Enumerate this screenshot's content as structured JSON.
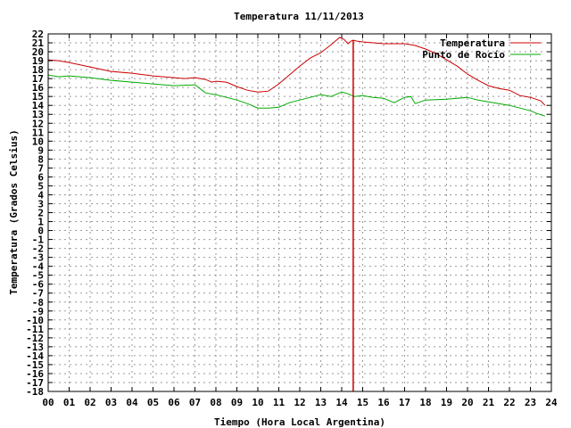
{
  "chart_data": {
    "type": "line",
    "title": "Temperatura 11/11/2013",
    "xlabel": "Tiempo (Hora Local Argentina)",
    "ylabel": "Temperatura (Grados Celsius)",
    "xlim": [
      0,
      24
    ],
    "ylim": [
      -18,
      22
    ],
    "x_ticks": [
      "00",
      "01",
      "02",
      "03",
      "04",
      "05",
      "06",
      "07",
      "08",
      "09",
      "10",
      "11",
      "12",
      "13",
      "14",
      "15",
      "16",
      "17",
      "18",
      "19",
      "20",
      "21",
      "22",
      "23",
      "24"
    ],
    "y_ticks": [
      22,
      21,
      20,
      19,
      18,
      17,
      16,
      15,
      14,
      13,
      12,
      11,
      10,
      9,
      8,
      7,
      6,
      5,
      4,
      3,
      2,
      1,
      0,
      -1,
      -2,
      -3,
      -4,
      -5,
      -6,
      -7,
      -8,
      -9,
      -10,
      -11,
      -12,
      -13,
      -14,
      -15,
      -16,
      -17,
      -18
    ],
    "grid": true,
    "legend_position": "top-right",
    "series": [
      {
        "name": "Temperatura",
        "color": "#cc0000",
        "x": [
          0,
          0.5,
          1,
          2,
          3,
          4,
          5,
          6,
          6.5,
          7,
          7.5,
          7.8,
          8,
          8.5,
          9,
          9.5,
          10,
          10.5,
          11,
          11.5,
          12,
          12.5,
          13,
          13.5,
          13.9,
          14.1,
          14.3,
          14.45,
          14.55,
          14.7,
          15,
          16,
          17,
          17.5,
          18,
          18.5,
          19,
          19.5,
          20,
          20.5,
          21,
          21.5,
          22,
          22.5,
          23,
          23.5,
          23.7
        ],
        "y": [
          19.1,
          19.0,
          18.8,
          18.3,
          17.8,
          17.6,
          17.3,
          17.1,
          17.0,
          17.1,
          16.9,
          16.6,
          16.7,
          16.6,
          16.1,
          15.7,
          15.5,
          15.6,
          16.4,
          17.4,
          18.4,
          19.3,
          19.9,
          20.8,
          21.6,
          21.4,
          20.9,
          21.2,
          21.3,
          21.2,
          21.1,
          20.9,
          20.9,
          20.7,
          20.3,
          19.8,
          19.1,
          18.4,
          17.5,
          16.8,
          16.2,
          15.9,
          15.7,
          15.1,
          14.9,
          14.5,
          14.0
        ]
      },
      {
        "name": "Punto de Rocío",
        "color": "#00aa00",
        "x": [
          0,
          0.5,
          1,
          2,
          3,
          4,
          5,
          6,
          7,
          7.5,
          8,
          8.5,
          9,
          9.5,
          10,
          10.5,
          11,
          11.5,
          12,
          12.5,
          13,
          13.5,
          14,
          14.3,
          14.6,
          15,
          15.5,
          16,
          16.5,
          17,
          17.3,
          17.5,
          18,
          19,
          20,
          20.5,
          21,
          21.5,
          22,
          22.5,
          23,
          23.3,
          23.7
        ],
        "y": [
          17.4,
          17.2,
          17.3,
          17.1,
          16.8,
          16.6,
          16.4,
          16.2,
          16.3,
          15.4,
          15.2,
          14.9,
          14.6,
          14.2,
          13.7,
          13.7,
          13.8,
          14.3,
          14.6,
          14.9,
          15.2,
          15.0,
          15.5,
          15.3,
          15.0,
          15.1,
          14.9,
          14.8,
          14.3,
          14.9,
          15.0,
          14.2,
          14.6,
          14.7,
          14.9,
          14.6,
          14.4,
          14.2,
          14.0,
          13.7,
          13.4,
          13.1,
          12.8
        ]
      },
      {
        "name": "",
        "color": "#cc0000",
        "x": [
          14.55,
          14.55
        ],
        "y": [
          21.3,
          -18
        ]
      }
    ]
  }
}
